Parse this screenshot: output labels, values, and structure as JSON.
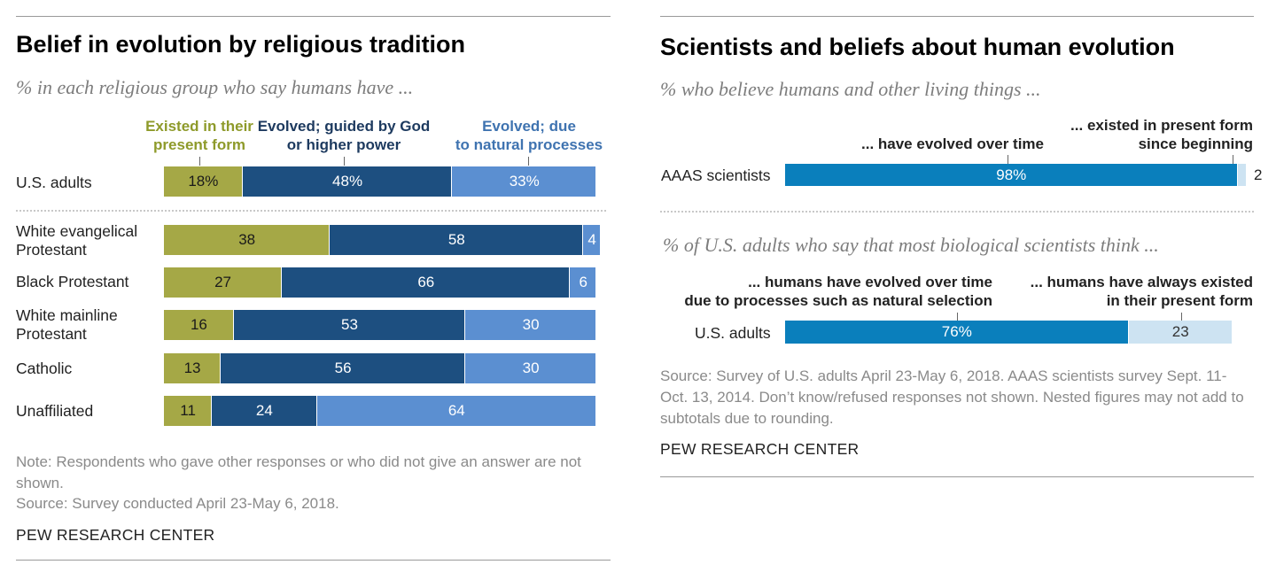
{
  "colors": {
    "olive": "#a5a846",
    "dark_blue": "#1d4f80",
    "mid_blue": "#5b8fd1",
    "teal": "#0a7fbc",
    "light_blue": "#cde3f2"
  },
  "left": {
    "title": "Belief in evolution by religious tradition",
    "subtitle": "% in each religious group who say humans have ...",
    "note": "Note: Respondents who gave other responses or who did not give an answer are not shown.",
    "source": "Source: Survey conducted April 23-May 6, 2018.",
    "brand": "PEW RESEARCH CENTER"
  },
  "right": {
    "title": "Scientists and beliefs about human evolution",
    "subtitle1": "% who believe humans and other living things ...",
    "subtitle2": "% of U.S. adults who say that most biological scientists think ...",
    "source": "Source: Survey of U.S. adults April 23-May 6, 2018. AAAS scientists survey Sept. 11-Oct. 13, 2014. Don’t know/refused responses not shown. Nested figures may not add to subtotals due to rounding.",
    "brand": "PEW RESEARCH CENTER"
  },
  "chart_data": [
    {
      "type": "bar",
      "orientation": "horizontal",
      "stacked": true,
      "title": "Belief in evolution by religious tradition",
      "subtitle": "% in each religious group who say humans have ...",
      "categories": [
        "U.S. adults",
        "White evangelical Protestant",
        "Black Protestant",
        "White mainline Protestant",
        "Catholic",
        "Unaffiliated"
      ],
      "series": [
        {
          "name": "Existed in their present form",
          "color": "#a5a846",
          "text_color": "#8e9a2a",
          "values": [
            18,
            38,
            27,
            16,
            13,
            11
          ],
          "labels": [
            "18%",
            "38",
            "27",
            "16",
            "13",
            "11"
          ]
        },
        {
          "name": "Evolved; guided by God or higher power",
          "color": "#1d4f80",
          "text_color": "#1d3a5f",
          "values": [
            48,
            58,
            66,
            53,
            56,
            24
          ],
          "labels": [
            "48%",
            "58",
            "66",
            "53",
            "56",
            "24"
          ]
        },
        {
          "name": "Evolved; due to natural processes",
          "color": "#5b8fd1",
          "text_color": "#3f73b0",
          "values": [
            33,
            4,
            6,
            30,
            30,
            64
          ],
          "labels": [
            "33%",
            "4",
            "6",
            "30",
            "30",
            "64"
          ]
        }
      ],
      "xlim": [
        0,
        100
      ]
    },
    {
      "type": "bar",
      "orientation": "horizontal",
      "stacked": true,
      "title": "Scientists and beliefs about human evolution",
      "subtitle": "% who believe humans and other living things ...",
      "categories": [
        "AAAS scientists"
      ],
      "series": [
        {
          "name": "... have evolved over time",
          "color": "#0a7fbc",
          "values": [
            98
          ],
          "labels": [
            "98%"
          ]
        },
        {
          "name": "... existed in present form since beginning",
          "color": "#cde3f2",
          "values": [
            2
          ],
          "labels": [
            "2"
          ]
        }
      ],
      "xlim": [
        0,
        100
      ]
    },
    {
      "type": "bar",
      "orientation": "horizontal",
      "stacked": true,
      "subtitle": "% of U.S. adults who say that most biological scientists think ...",
      "categories": [
        "U.S. adults"
      ],
      "series": [
        {
          "name": "... humans have evolved over time due to processes such as natural selection",
          "color": "#0a7fbc",
          "values": [
            76
          ],
          "labels": [
            "76%"
          ]
        },
        {
          "name": "... humans have always existed in their present form",
          "color": "#cde3f2",
          "values": [
            23
          ],
          "labels": [
            "23"
          ]
        }
      ],
      "xlim": [
        0,
        100
      ]
    }
  ]
}
